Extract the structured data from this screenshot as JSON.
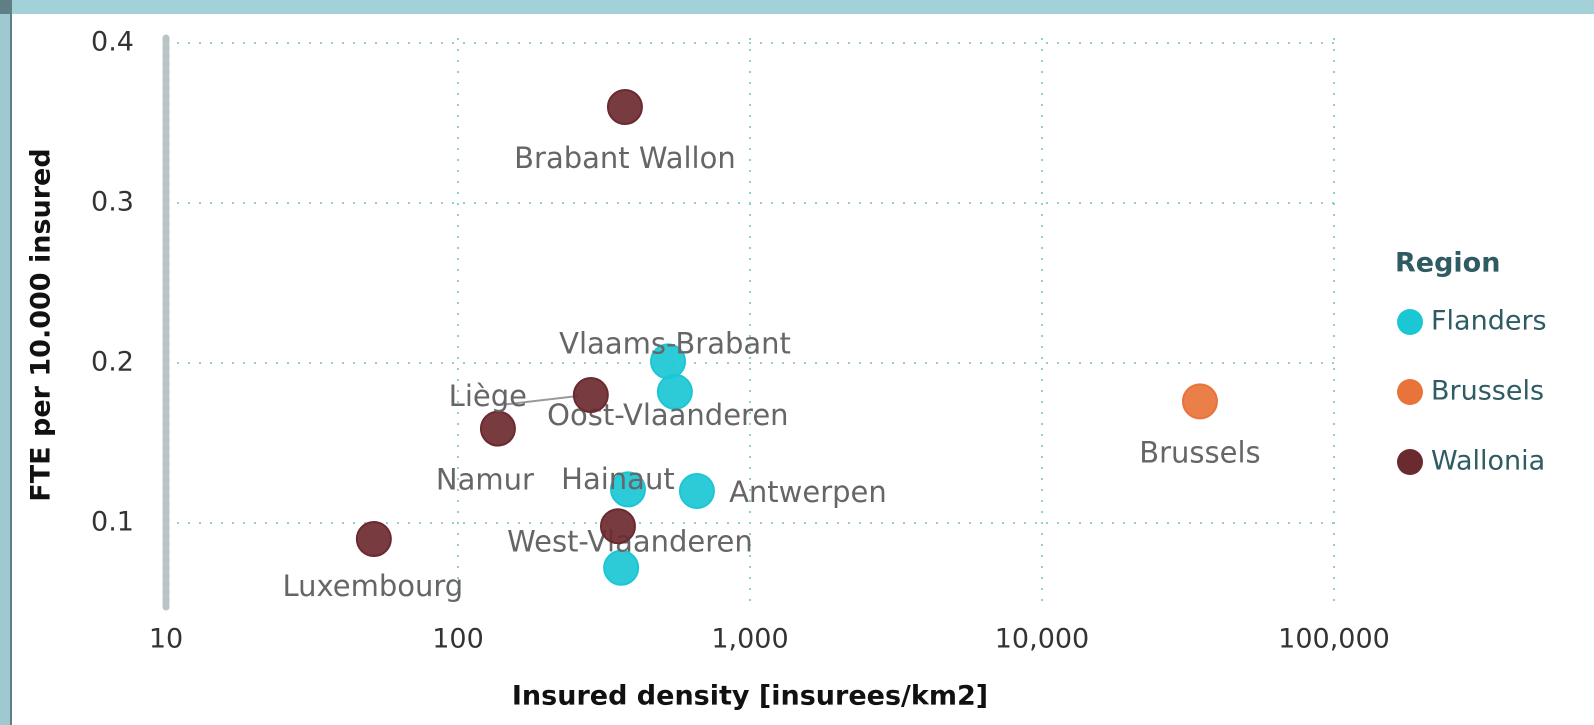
{
  "chart_data": {
    "type": "scatter",
    "x_label": "Insured density [insurees/km2]",
    "y_label": "FTE per 10.000 insured",
    "legend_title": "Region",
    "legend": "right",
    "xscale": "log",
    "grid": true,
    "xlim": [
      10,
      100000
    ],
    "ylim": [
      0.05,
      0.4
    ],
    "xticks": [
      10,
      100,
      {
        "value": 1000,
        "label": "1,000"
      },
      {
        "value": 10000,
        "label": "10,000"
      },
      {
        "value": 100000,
        "label": "100,000"
      }
    ],
    "yticks": [
      0.1,
      0.2,
      0.3,
      0.4
    ],
    "series": [
      {
        "name": "Flanders",
        "color": "#1bc7d4",
        "labels": [
          "Vlaams-Brabant",
          "Oost-Vlaanderen",
          "Antwerpen",
          "West-Vlaanderen",
          null
        ],
        "x": [
          524,
          553,
          658,
          382,
          362
        ],
        "y": [
          0.201,
          0.182,
          0.12,
          0.121,
          0.072
        ]
      },
      {
        "name": "Brussels",
        "color": "#e8743b",
        "labels": [
          "Brussels"
        ],
        "x": [
          34750
        ],
        "y": [
          0.176
        ]
      },
      {
        "name": "Wallonia",
        "color": "#6b2a30",
        "labels": [
          "Brabant Wallon",
          "Liège",
          "Namur",
          "Hainaut",
          "Luxembourg"
        ],
        "x": [
          373,
          285,
          137,
          353,
          51.5
        ],
        "y": [
          0.36,
          0.18,
          0.159,
          0.098,
          0.09
        ]
      }
    ]
  }
}
